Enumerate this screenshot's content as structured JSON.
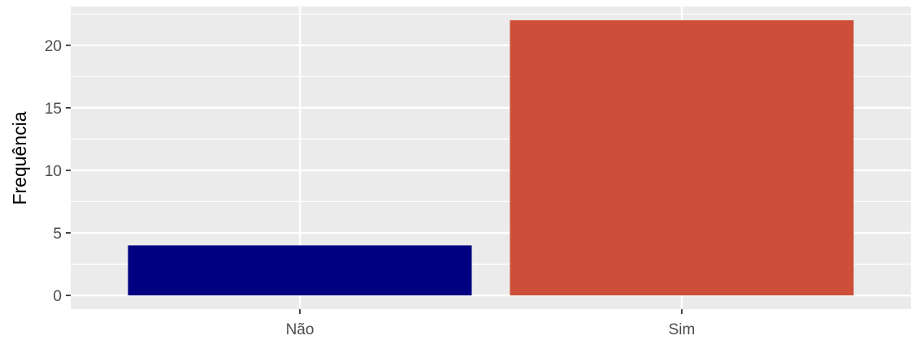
{
  "chart_data": {
    "type": "bar",
    "categories": [
      "Não",
      "Sim"
    ],
    "values": [
      4,
      22
    ],
    "colors": [
      "#000080",
      "#CD4F39"
    ],
    "xlabel": "",
    "ylabel": "Frequência",
    "ylim": [
      0,
      23.1
    ],
    "yticks": [
      0,
      5,
      10,
      15,
      20
    ],
    "grid": true,
    "panel_background": "#EBEBEB",
    "grid_color": "#FFFFFF",
    "legend": "none"
  }
}
